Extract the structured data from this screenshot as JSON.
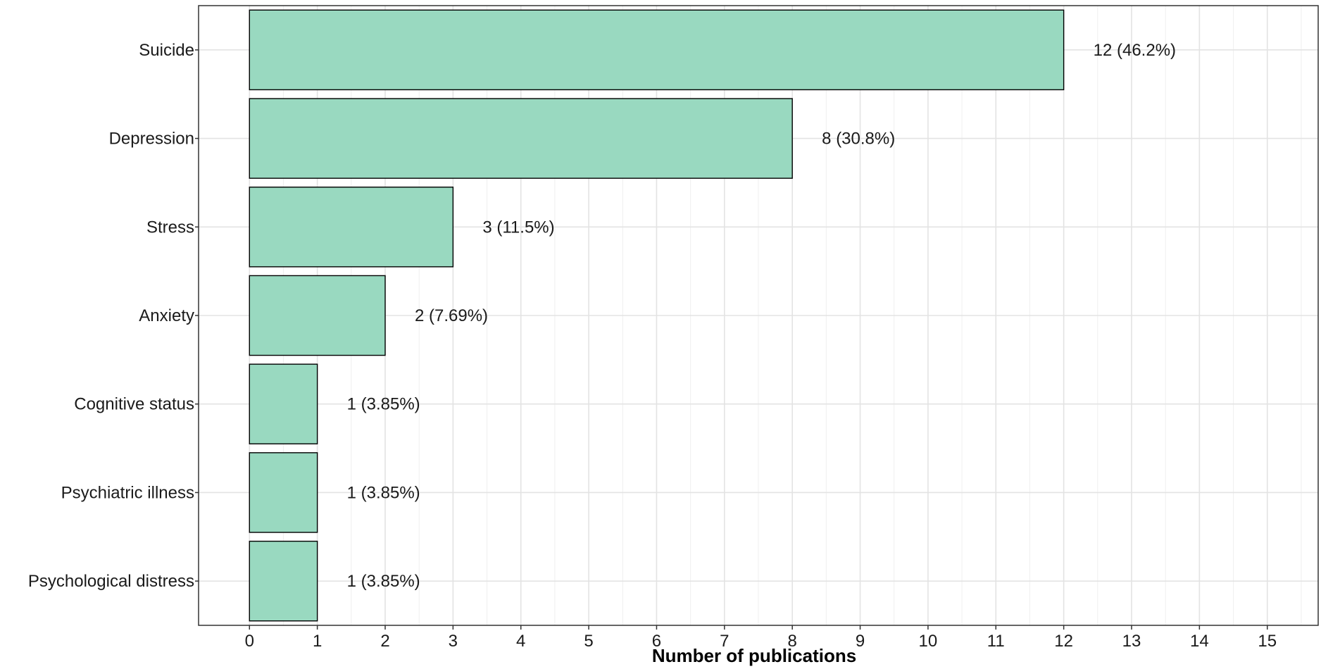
{
  "chart_data": {
    "type": "bar",
    "orientation": "horizontal",
    "categories": [
      "Suicide",
      "Depression",
      "Stress",
      "Anxiety",
      "Cognitive status",
      "Psychiatric illness",
      "Psychological distress"
    ],
    "values": [
      12,
      8,
      3,
      2,
      1,
      1,
      1
    ],
    "data_labels": [
      "12 (46.2%)",
      "8 (30.8%)",
      "3 (11.5%)",
      "2 (7.69%)",
      "1 (3.85%)",
      "1 (3.85%)",
      "1 (3.85%)"
    ],
    "xlabel": "Number of publications",
    "ylabel": "",
    "xlim": [
      -0.75,
      15.75
    ],
    "x_ticks": [
      "0",
      "1",
      "2",
      "3",
      "4",
      "5",
      "6",
      "7",
      "8",
      "9",
      "10",
      "11",
      "12",
      "13",
      "14",
      "15"
    ],
    "grid": true,
    "legend": "none",
    "bar_color": "#99d9c0",
    "bar_outline": "#000000"
  }
}
